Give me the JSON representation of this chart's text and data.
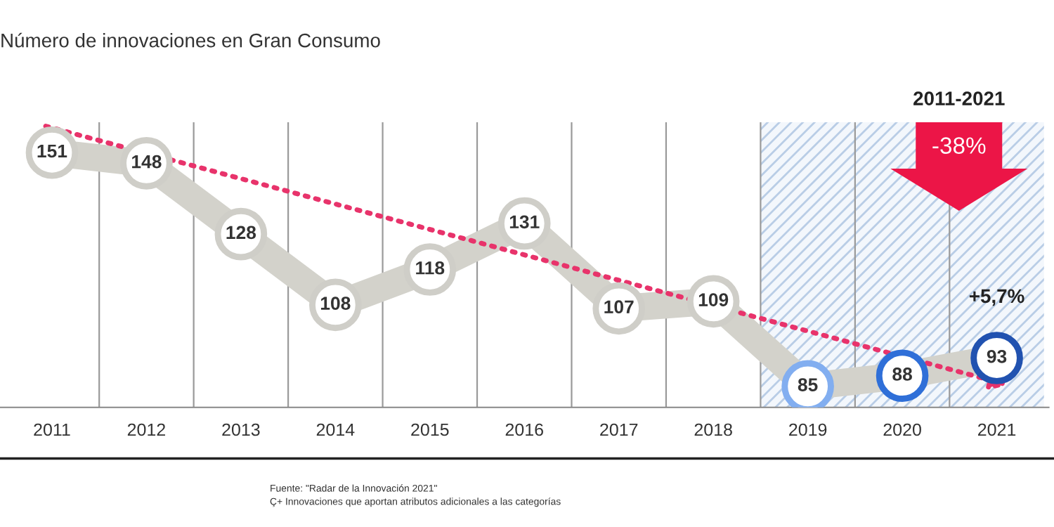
{
  "chart_data": {
    "type": "line",
    "title": "Número de innovaciones en Gran Consumo",
    "categories": [
      "2011",
      "2012",
      "2013",
      "2014",
      "2015",
      "2016",
      "2017",
      "2018",
      "2019",
      "2020",
      "2021"
    ],
    "series": [
      {
        "color": "#d3d2cb",
        "values": [
          151,
          148,
          128,
          108,
          118,
          131,
          107,
          109,
          85,
          88,
          93
        ],
        "colors": [
          "#cfcec8",
          "#cfcec8",
          "#cfcec8",
          "#cfcec8",
          "#cfcec8",
          "#cfcec8",
          "#cfcec8",
          "#cfcec8",
          "#82aef0",
          "#2f6fd8",
          "#2152b0"
        ],
        "marker": "circle",
        "data_labels": true
      }
    ],
    "bands": [
      {
        "axis": "x",
        "from": "2019",
        "to": "2021",
        "color": "#b9cde6"
      }
    ],
    "grid": "x",
    "legend": false,
    "tick_labels": "x",
    "annotations": [
      "2011-2021",
      "-38%",
      "+5,7%",
      "Fuente: \"Radar de la Innovación 2021\"",
      "Ç+ Innovaciones que aportan atributos adicionales a las categorías"
    ]
  }
}
